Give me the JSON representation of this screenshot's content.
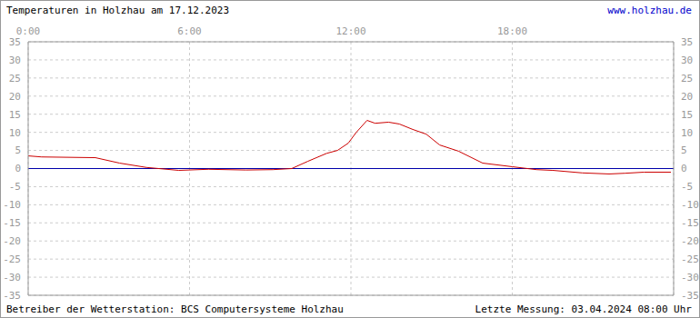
{
  "chart_data": {
    "type": "line",
    "title": "Temperaturen in Holzhau am 17.12.2023",
    "source": "www.holzhau.de",
    "annotations": [
      "Betreiber der Wetterstation: BCS Computersysteme Holzhau",
      "Letzte Messung: 03.04.2024 08:00 Uhr"
    ],
    "x": [
      0,
      0.5,
      2.5,
      3.4,
      4.4,
      5.6,
      6.7,
      8.1,
      9.1,
      9.8,
      10.4,
      11.1,
      11.5,
      11.9,
      12.2,
      12.6,
      12.9,
      13.4,
      13.8,
      14.3,
      14.8,
      15.3,
      16,
      16.9,
      18,
      18.9,
      19.5,
      20.6,
      21.6,
      22.2,
      22.9,
      23.9
    ],
    "values": [
      3.5,
      3.2,
      3.0,
      1.5,
      0.3,
      -0.5,
      -0.2,
      -0.4,
      -0.3,
      0,
      2,
      4.2,
      5,
      7,
      10,
      13.3,
      12.5,
      12.8,
      12.3,
      10.8,
      9.5,
      6.5,
      4.8,
      1.5,
      0.5,
      -0.3,
      -0.5,
      -1.2,
      -1.5,
      -1.3,
      -1,
      -1
    ],
    "color": "#cc0000",
    "xlim": [
      0,
      24
    ],
    "xticks": [
      {
        "value": 0,
        "label": "0:00"
      },
      {
        "value": 6,
        "label": "6:00"
      },
      {
        "value": 12,
        "label": "12:00"
      },
      {
        "value": 18,
        "label": "18:00"
      }
    ],
    "ylim": [
      -35,
      35
    ],
    "yticks": [
      -35,
      -30,
      -25,
      -20,
      -15,
      -10,
      -5,
      0,
      5,
      10,
      15,
      20,
      25,
      30,
      35
    ],
    "grid": true
  }
}
